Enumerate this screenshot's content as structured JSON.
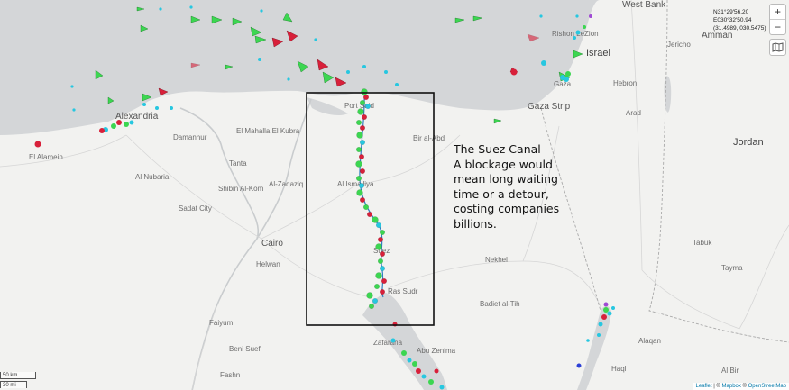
{
  "map": {
    "places": [
      {
        "name": "West Bank",
        "cls": "big"
      },
      {
        "name": "Rishon LeZion",
        "cls": ""
      },
      {
        "name": "Jericho",
        "cls": ""
      },
      {
        "name": "Amman",
        "cls": "big"
      },
      {
        "name": "Israel",
        "cls": "country"
      },
      {
        "name": "Hebron",
        "cls": ""
      },
      {
        "name": "Gaza",
        "cls": ""
      },
      {
        "name": "Gaza Strip",
        "cls": "big"
      },
      {
        "name": "Arad",
        "cls": ""
      },
      {
        "name": "Jordan",
        "cls": "country"
      },
      {
        "name": "Alexandria",
        "cls": "big"
      },
      {
        "name": "El Alamein",
        "cls": ""
      },
      {
        "name": "Damanhur",
        "cls": ""
      },
      {
        "name": "El Mahalla El Kubra",
        "cls": ""
      },
      {
        "name": "Tanta",
        "cls": ""
      },
      {
        "name": "Al Nubaria",
        "cls": ""
      },
      {
        "name": "Shibin Al-Kom",
        "cls": ""
      },
      {
        "name": "Al-Zaqaziq",
        "cls": ""
      },
      {
        "name": "Sadat City",
        "cls": ""
      },
      {
        "name": "Al Ismailiya",
        "cls": ""
      },
      {
        "name": "Bir al-Abd",
        "cls": ""
      },
      {
        "name": "Port Said",
        "cls": ""
      },
      {
        "name": "Cairo",
        "cls": "big"
      },
      {
        "name": "Helwan",
        "cls": ""
      },
      {
        "name": "Suez",
        "cls": ""
      },
      {
        "name": "Nekhel",
        "cls": ""
      },
      {
        "name": "Ras Sudr",
        "cls": ""
      },
      {
        "name": "Badiet al-Tih",
        "cls": ""
      },
      {
        "name": "Faiyum",
        "cls": ""
      },
      {
        "name": "Beni Suef",
        "cls": ""
      },
      {
        "name": "Fashn",
        "cls": ""
      },
      {
        "name": "Zafarana",
        "cls": ""
      },
      {
        "name": "Abu Zenima",
        "cls": ""
      },
      {
        "name": "Tabuk",
        "cls": ""
      },
      {
        "name": "Alaqan",
        "cls": ""
      },
      {
        "name": "Al Bir",
        "cls": ""
      },
      {
        "name": "Haql",
        "cls": ""
      },
      {
        "name": "Tayma",
        "cls": ""
      }
    ]
  },
  "controls": {
    "zoom_in": "+",
    "zoom_out": "−"
  },
  "coordinates": {
    "lat": "N31°29'56.20",
    "lon": "E030°32'50.94",
    "decimal": "(31.4989, 030.5475)"
  },
  "annotation": {
    "title": "The Suez Canal",
    "body": "A blockage would mean long waiting time or a detour, costing companies billions."
  },
  "scale": {
    "km": "50 km",
    "mi": "30 mi"
  },
  "attribution": {
    "leaflet": "Leaflet",
    "sep1": " | © ",
    "mapbox": "Mapbox",
    "sep2": " © ",
    "osm": "OpenStreetMap"
  },
  "colors": {
    "sea": "#d4d6d8",
    "land": "#f2f2f0",
    "ship_cargo": "#3cd651",
    "ship_tanker": "#d8203a",
    "ship_passenger": "#27c7e0",
    "highlight_box": "#111111"
  }
}
